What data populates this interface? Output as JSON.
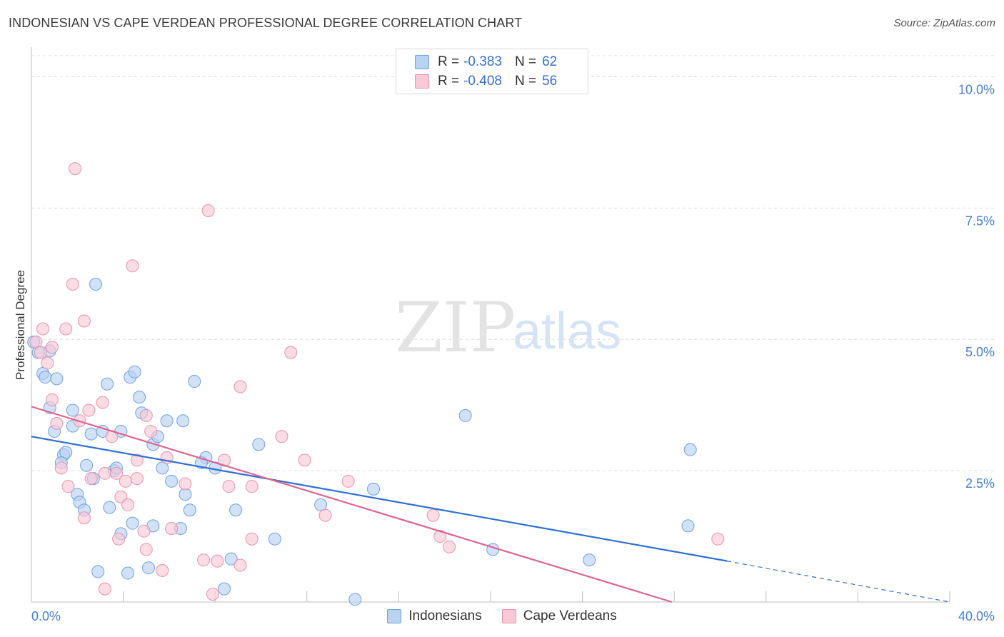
{
  "title": "INDONESIAN VS CAPE VERDEAN PROFESSIONAL DEGREE CORRELATION CHART",
  "source": "Source: ZipAtlas.com",
  "watermark": {
    "zip": "ZIP",
    "atlas": "atlas"
  },
  "legend": {
    "r_label": "R =",
    "n_label": "N =",
    "rows": [
      {
        "name": "Indonesians",
        "r": "-0.383",
        "n": "62",
        "fill": "#b9d3f3",
        "stroke": "#6f9fe0"
      },
      {
        "name": "Cape Verdeans",
        "r": "-0.408",
        "n": "56",
        "fill": "#f8c9d7",
        "stroke": "#e891ae"
      }
    ]
  },
  "chart_data": {
    "type": "scatter",
    "title": "INDONESIAN VS CAPE VERDEAN PROFESSIONAL DEGREE CORRELATION CHART",
    "xlabel": "",
    "ylabel": "Professional Degree",
    "xlim": [
      0,
      40
    ],
    "ylim": [
      0,
      10.4
    ],
    "x_tick_labels": [
      "0.0%",
      "40.0%"
    ],
    "y_ticks": [
      2.5,
      5.0,
      7.5,
      10.0
    ],
    "y_tick_labels": [
      "2.5%",
      "5.0%",
      "7.5%",
      "10.0%"
    ],
    "grid": true,
    "series": [
      {
        "name": "Indonesians",
        "color": "#6f9fe0",
        "fill": "#b9d3f3",
        "trend": {
          "x0": 0,
          "y0": 3.15,
          "x1": 30.3,
          "y1": 0.78,
          "dash_to_x": 40,
          "dash_to_y": 0.0
        },
        "points": [
          [
            0.1,
            4.95
          ],
          [
            0.3,
            4.75
          ],
          [
            0.8,
            4.78
          ],
          [
            0.5,
            4.35
          ],
          [
            0.6,
            4.28
          ],
          [
            1.1,
            4.25
          ],
          [
            2.8,
            6.05
          ],
          [
            3.3,
            4.15
          ],
          [
            4.3,
            4.28
          ],
          [
            4.5,
            4.38
          ],
          [
            4.7,
            3.9
          ],
          [
            7.1,
            4.2
          ],
          [
            0.8,
            3.7
          ],
          [
            1.8,
            3.65
          ],
          [
            4.8,
            3.6
          ],
          [
            5.9,
            3.45
          ],
          [
            6.6,
            3.45
          ],
          [
            1.0,
            3.25
          ],
          [
            1.8,
            3.35
          ],
          [
            2.6,
            3.2
          ],
          [
            3.1,
            3.25
          ],
          [
            3.9,
            3.25
          ],
          [
            5.3,
            3.0
          ],
          [
            5.5,
            3.15
          ],
          [
            9.9,
            3.0
          ],
          [
            18.9,
            3.55
          ],
          [
            28.7,
            2.9
          ],
          [
            1.4,
            2.8
          ],
          [
            1.5,
            2.85
          ],
          [
            1.3,
            2.65
          ],
          [
            2.4,
            2.6
          ],
          [
            3.6,
            2.5
          ],
          [
            3.7,
            2.55
          ],
          [
            5.7,
            2.55
          ],
          [
            7.6,
            2.75
          ],
          [
            7.4,
            2.65
          ],
          [
            8.0,
            2.55
          ],
          [
            2.7,
            2.35
          ],
          [
            6.1,
            2.3
          ],
          [
            6.7,
            2.05
          ],
          [
            14.9,
            2.15
          ],
          [
            2.0,
            2.05
          ],
          [
            2.1,
            1.9
          ],
          [
            2.3,
            1.75
          ],
          [
            3.4,
            1.8
          ],
          [
            6.9,
            1.75
          ],
          [
            8.9,
            1.75
          ],
          [
            12.6,
            1.85
          ],
          [
            4.4,
            1.5
          ],
          [
            5.3,
            1.45
          ],
          [
            6.5,
            1.4
          ],
          [
            28.6,
            1.45
          ],
          [
            3.9,
            1.3
          ],
          [
            10.6,
            1.2
          ],
          [
            20.1,
            1.0
          ],
          [
            24.3,
            0.8
          ],
          [
            8.7,
            0.82
          ],
          [
            2.9,
            0.58
          ],
          [
            4.2,
            0.55
          ],
          [
            5.1,
            0.65
          ],
          [
            8.4,
            0.25
          ],
          [
            14.1,
            0.05
          ]
        ]
      },
      {
        "name": "Cape Verdeans",
        "color": "#e891ae",
        "fill": "#f8c9d7",
        "trend": {
          "x0": 0,
          "y0": 3.72,
          "x1": 27.9,
          "y1": 0.0
        },
        "points": [
          [
            1.9,
            8.25
          ],
          [
            7.7,
            7.45
          ],
          [
            4.4,
            6.4
          ],
          [
            1.8,
            6.05
          ],
          [
            2.3,
            5.35
          ],
          [
            0.5,
            5.2
          ],
          [
            1.5,
            5.2
          ],
          [
            0.2,
            4.95
          ],
          [
            0.9,
            4.85
          ],
          [
            0.4,
            4.75
          ],
          [
            0.7,
            4.55
          ],
          [
            11.3,
            4.75
          ],
          [
            9.1,
            4.1
          ],
          [
            0.9,
            3.85
          ],
          [
            3.1,
            3.8
          ],
          [
            2.5,
            3.65
          ],
          [
            5.0,
            3.55
          ],
          [
            1.1,
            3.4
          ],
          [
            2.1,
            3.45
          ],
          [
            3.5,
            3.15
          ],
          [
            5.2,
            3.25
          ],
          [
            10.9,
            3.15
          ],
          [
            5.9,
            2.75
          ],
          [
            4.6,
            2.7
          ],
          [
            8.4,
            2.7
          ],
          [
            11.9,
            2.7
          ],
          [
            1.3,
            2.55
          ],
          [
            3.2,
            2.45
          ],
          [
            3.7,
            2.45
          ],
          [
            2.6,
            2.35
          ],
          [
            4.1,
            2.3
          ],
          [
            4.6,
            2.35
          ],
          [
            6.7,
            2.25
          ],
          [
            9.6,
            2.2
          ],
          [
            13.8,
            2.3
          ],
          [
            1.6,
            2.2
          ],
          [
            8.6,
            2.2
          ],
          [
            3.9,
            2.0
          ],
          [
            4.2,
            1.85
          ],
          [
            17.5,
            1.65
          ],
          [
            12.8,
            1.65
          ],
          [
            2.3,
            1.6
          ],
          [
            4.9,
            1.35
          ],
          [
            6.1,
            1.4
          ],
          [
            9.6,
            1.2
          ],
          [
            17.8,
            1.25
          ],
          [
            29.9,
            1.2
          ],
          [
            3.8,
            1.2
          ],
          [
            5.0,
            1.0
          ],
          [
            18.2,
            1.05
          ],
          [
            7.5,
            0.8
          ],
          [
            8.1,
            0.78
          ],
          [
            9.1,
            0.7
          ],
          [
            5.7,
            0.6
          ],
          [
            3.2,
            0.25
          ],
          [
            7.9,
            0.15
          ]
        ]
      }
    ]
  }
}
